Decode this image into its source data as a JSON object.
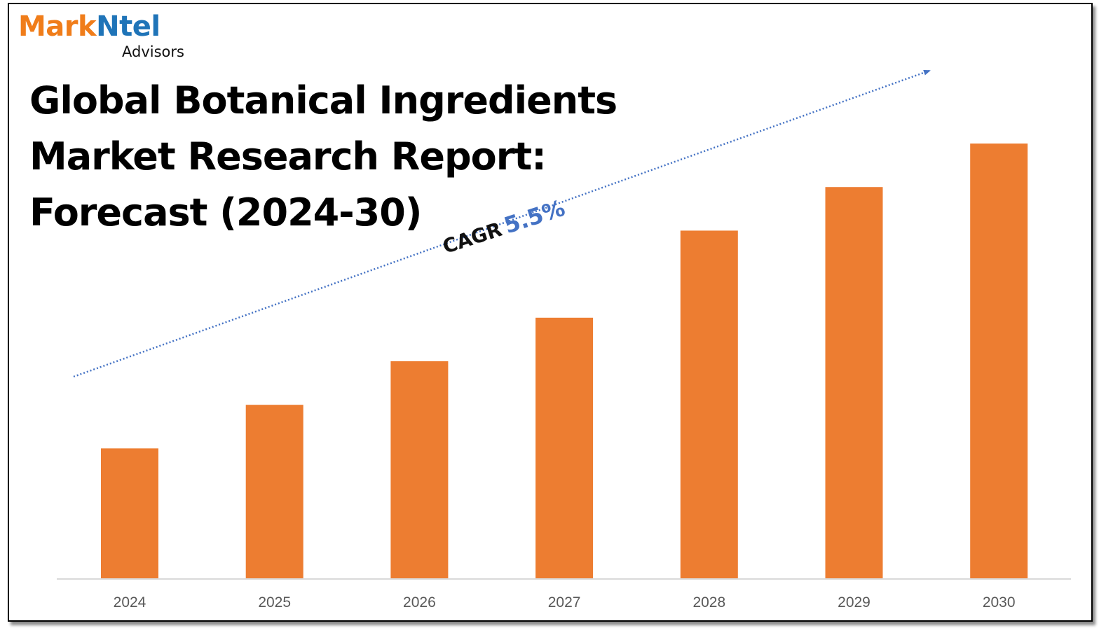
{
  "logo": {
    "name_part1": "Mark",
    "name_part2": "Ntel",
    "subtitle": "Advisors"
  },
  "title": {
    "line1": "Global Botanical Ingredients",
    "line2": "Market Research Report:",
    "line3": "Forecast (2024-30)"
  },
  "cagr": {
    "label": "CAGR",
    "value": "5.5%"
  },
  "colors": {
    "bar": "#ED7D31",
    "trend_arrow": "#4472C4",
    "axis": "#D9D9D9",
    "logo_orange": "#F07D1A",
    "logo_blue": "#1F74B8"
  },
  "chart_data": {
    "type": "bar",
    "categories": [
      "2024",
      "2025",
      "2026",
      "2027",
      "2028",
      "2029",
      "2030"
    ],
    "values": [
      30,
      40,
      50,
      60,
      80,
      90,
      100
    ],
    "ylim": [
      0,
      100
    ],
    "grid": false,
    "legend": "none",
    "trend_arrow": "dotted"
  }
}
